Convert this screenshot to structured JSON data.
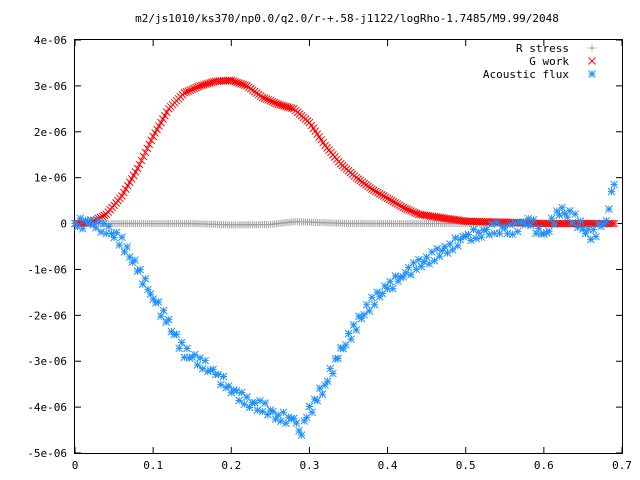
{
  "chart_data": {
    "type": "scatter",
    "title": "m2/js1010/ks370/np0.0/q2.0/r-+.58-j1122/logRho-1.7485/M9.99/2048",
    "xlabel": "",
    "ylabel": "",
    "xlim": [
      0,
      0.7
    ],
    "ylim": [
      -5e-06,
      4e-06
    ],
    "x_ticks": [
      "0",
      "0.1",
      "0.2",
      "0.3",
      "0.4",
      "0.5",
      "0.6",
      "0.7"
    ],
    "y_ticks": [
      "-5e-06",
      "-4e-06",
      "-3e-06",
      "-2e-06",
      "-1e-06",
      "0",
      "1e-06",
      "2e-06",
      "3e-06",
      "4e-06"
    ],
    "grid": false,
    "legend_position": "top-right",
    "series": [
      {
        "name": "R stress",
        "marker": "plus",
        "color": "#a0a0a0",
        "points": [
          [
            0,
            0
          ],
          [
            0.05,
            0
          ],
          [
            0.1,
            0
          ],
          [
            0.15,
            0
          ],
          [
            0.2,
            -3e-08
          ],
          [
            0.25,
            -2e-08
          ],
          [
            0.28,
            4e-08
          ],
          [
            0.3,
            3e-08
          ],
          [
            0.35,
            0
          ],
          [
            0.4,
            0
          ],
          [
            0.45,
            0
          ],
          [
            0.5,
            0
          ],
          [
            0.55,
            0
          ],
          [
            0.6,
            0
          ],
          [
            0.65,
            0
          ],
          [
            0.69,
            0
          ]
        ]
      },
      {
        "name": "G work",
        "marker": "cross",
        "color": "#ff0000",
        "points": [
          [
            0,
            0
          ],
          [
            0.02,
            2e-08
          ],
          [
            0.04,
            2e-07
          ],
          [
            0.06,
            6e-07
          ],
          [
            0.08,
            1.2e-06
          ],
          [
            0.1,
            1.9e-06
          ],
          [
            0.12,
            2.5e-06
          ],
          [
            0.14,
            2.85e-06
          ],
          [
            0.16,
            3e-06
          ],
          [
            0.18,
            3.1e-06
          ],
          [
            0.2,
            3.12e-06
          ],
          [
            0.22,
            3e-06
          ],
          [
            0.24,
            2.75e-06
          ],
          [
            0.26,
            2.6e-06
          ],
          [
            0.28,
            2.5e-06
          ],
          [
            0.3,
            2.2e-06
          ],
          [
            0.32,
            1.7e-06
          ],
          [
            0.34,
            1.3e-06
          ],
          [
            0.36,
            1e-06
          ],
          [
            0.38,
            7.5e-07
          ],
          [
            0.4,
            5.5e-07
          ],
          [
            0.42,
            3.5e-07
          ],
          [
            0.44,
            2e-07
          ],
          [
            0.46,
            1.5e-07
          ],
          [
            0.48,
            1e-07
          ],
          [
            0.5,
            5e-08
          ],
          [
            0.55,
            3e-08
          ],
          [
            0.6,
            0
          ],
          [
            0.65,
            0
          ],
          [
            0.69,
            0
          ]
        ]
      },
      {
        "name": "Acoustic flux",
        "marker": "star",
        "color": "#1e90ff",
        "points": [
          [
            0,
            0
          ],
          [
            0.02,
            0
          ],
          [
            0.04,
            -1e-07
          ],
          [
            0.06,
            -4e-07
          ],
          [
            0.08,
            -1e-06
          ],
          [
            0.1,
            -1.6e-06
          ],
          [
            0.12,
            -2.2e-06
          ],
          [
            0.14,
            -2.8e-06
          ],
          [
            0.16,
            -3e-06
          ],
          [
            0.18,
            -3.3e-06
          ],
          [
            0.2,
            -3.6e-06
          ],
          [
            0.22,
            -3.9e-06
          ],
          [
            0.24,
            -4e-06
          ],
          [
            0.26,
            -4.2e-06
          ],
          [
            0.28,
            -4.3e-06
          ],
          [
            0.29,
            -4.5e-06
          ],
          [
            0.3,
            -4.1e-06
          ],
          [
            0.31,
            -3.8e-06
          ],
          [
            0.32,
            -3.5e-06
          ],
          [
            0.34,
            -2.8e-06
          ],
          [
            0.36,
            -2.2e-06
          ],
          [
            0.38,
            -1.7e-06
          ],
          [
            0.4,
            -1.4e-06
          ],
          [
            0.42,
            -1.1e-06
          ],
          [
            0.44,
            -9e-07
          ],
          [
            0.46,
            -7e-07
          ],
          [
            0.48,
            -5e-07
          ],
          [
            0.5,
            -3e-07
          ],
          [
            0.52,
            -2e-07
          ],
          [
            0.54,
            -1e-07
          ],
          [
            0.56,
            -1.5e-07
          ],
          [
            0.58,
            1e-07
          ],
          [
            0.6,
            -3e-07
          ],
          [
            0.62,
            3e-07
          ],
          [
            0.64,
            1e-07
          ],
          [
            0.66,
            -3e-07
          ],
          [
            0.68,
            1e-07
          ],
          [
            0.69,
            8.5e-07
          ]
        ]
      }
    ]
  }
}
